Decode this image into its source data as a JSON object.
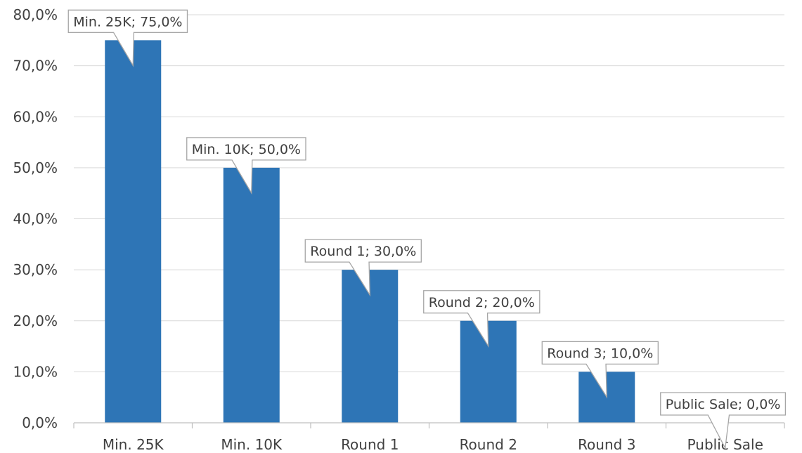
{
  "chart_data": {
    "type": "bar",
    "title": "",
    "xlabel": "",
    "ylabel": "",
    "categories": [
      "Min. 25K",
      "Min. 10K",
      "Round 1",
      "Round 2",
      "Round 3",
      "Public Sale"
    ],
    "values": [
      75.0,
      50.0,
      30.0,
      20.0,
      10.0,
      0.0
    ],
    "data_labels": [
      "Min. 25K; 75,0%",
      "Min. 10K; 50,0%",
      "Round 1; 30,0%",
      "Round 2; 20,0%",
      "Round 3; 10,0%",
      "Public Sale; 0,0%"
    ],
    "ylim": [
      0,
      80
    ],
    "yticks": [
      0,
      10,
      20,
      30,
      40,
      50,
      60,
      70,
      80
    ],
    "ytick_labels": [
      "0,0%",
      "10,0%",
      "20,0%",
      "30,0%",
      "40,0%",
      "50,0%",
      "60,0%",
      "70,0%",
      "80,0%"
    ],
    "grid": true,
    "legend": "none",
    "colors": {
      "bar": "#2E75B6",
      "grid": "#D9D9D9",
      "axis": "#BFBFBF",
      "callout_border": "#A6A6A6"
    }
  }
}
